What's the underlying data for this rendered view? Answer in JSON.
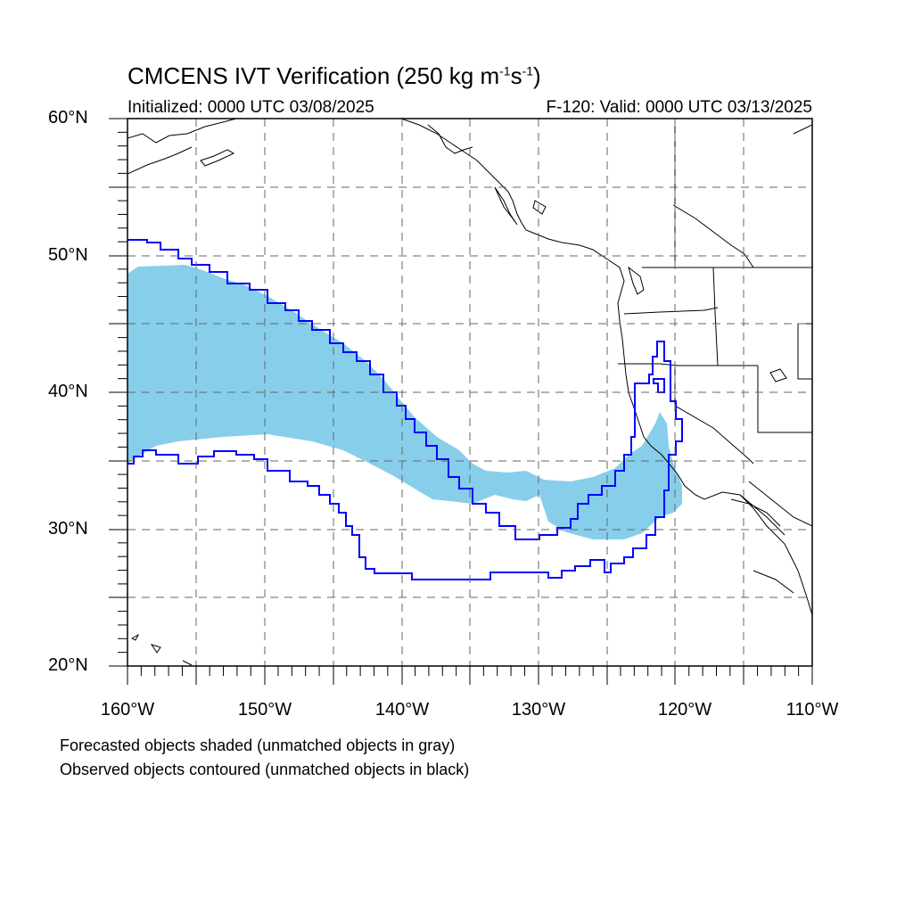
{
  "title": {
    "main": "CMCENS IVT Verification (250 kg m",
    "sup1": "-1",
    "mid": "s",
    "sup2": "-1",
    "end": ")"
  },
  "subtitle": {
    "initialized": "Initialized: 0000 UTC 03/08/2025",
    "valid": "F-120: Valid: 0000 UTC 03/13/2025"
  },
  "axes": {
    "lat_labels": [
      "60°N",
      "50°N",
      "40°N",
      "30°N",
      "20°N"
    ],
    "lon_labels": [
      "160°W",
      "150°W",
      "140°W",
      "130°W",
      "120°W",
      "110°W"
    ],
    "lat_range": [
      20,
      60
    ],
    "lon_range": [
      -160,
      -110
    ],
    "grid": "dashed gray every 5 degrees"
  },
  "legend_notes": [
    "Forecasted objects shaded (unmatched objects in gray)",
    "Observed objects contoured (unmatched objects in black)"
  ],
  "colors": {
    "forecast_fill": "#87CEEB",
    "observed_contour": "#0000FF",
    "coastline": "#000000",
    "grid": "#666666"
  }
}
